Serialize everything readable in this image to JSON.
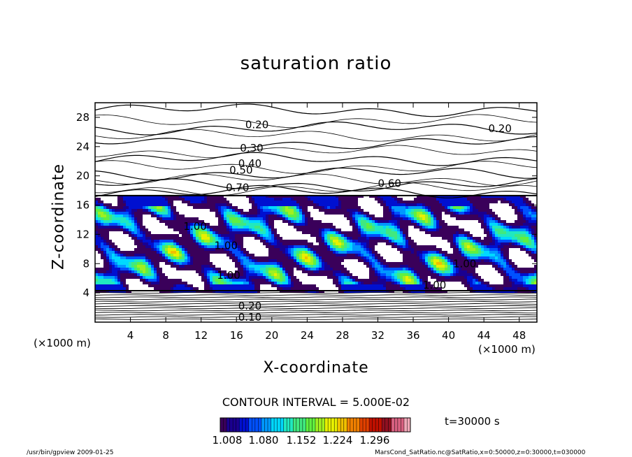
{
  "chart_data": {
    "type": "heatmap",
    "title": "saturation ratio",
    "xlabel": "X-coordinate",
    "ylabel": "Z-coordinate",
    "x_unit": "(×1000 m)",
    "xlim": [
      0,
      50
    ],
    "ylim": [
      0,
      30
    ],
    "xticks": [
      4,
      8,
      12,
      16,
      20,
      24,
      28,
      32,
      36,
      40,
      44,
      48
    ],
    "yticks": [
      4,
      8,
      12,
      16,
      20,
      24,
      28
    ],
    "contour_interval": "CONTOUR INTERVAL = 5.000E-02",
    "contour_labels": [
      {
        "text": "0.20",
        "x": 17,
        "z": 26.5
      },
      {
        "text": "0.20",
        "x": 44.5,
        "z": 26
      },
      {
        "text": "0.30",
        "x": 16.4,
        "z": 23.3
      },
      {
        "text": "0.40",
        "x": 16.2,
        "z": 21.2
      },
      {
        "text": "0.50",
        "x": 15.2,
        "z": 20.3
      },
      {
        "text": "0.60",
        "x": 32,
        "z": 18.5
      },
      {
        "text": "0.70",
        "x": 14.8,
        "z": 17.9
      },
      {
        "text": "1.00",
        "x": 10,
        "z": 12.6
      },
      {
        "text": "1.00",
        "x": 13.5,
        "z": 10
      },
      {
        "text": "1.00",
        "x": 40.5,
        "z": 7.5
      },
      {
        "text": "1.00",
        "x": 13.8,
        "z": 5.9
      },
      {
        "text": "1.00",
        "x": 37.1,
        "z": 4.6
      },
      {
        "text": "0.20",
        "x": 16.2,
        "z": 1.7
      },
      {
        "text": "0.10",
        "x": 16.2,
        "z": 0.2
      }
    ],
    "colorbar": {
      "ticks": [
        "1.008",
        "1.080",
        "1.152",
        "1.224",
        "1.296"
      ],
      "colors": [
        "#3a005a",
        "#1a0090",
        "#0010d0",
        "#0050ff",
        "#0098ff",
        "#00d8ff",
        "#20e8c0",
        "#40e880",
        "#60f040",
        "#a0f020",
        "#e8f000",
        "#f0c000",
        "#f08000",
        "#e04000",
        "#c01000",
        "#901020",
        "#d86080",
        "#f0a8b8"
      ]
    }
  },
  "annotations": {
    "time": "t=30000 s",
    "footer_left": "/usr/bin/gpview   2009-01-25",
    "footer_right": "MarsCond_SatRatio.nc@SatRatio,x=0:50000,z=0:30000,t=030000"
  }
}
